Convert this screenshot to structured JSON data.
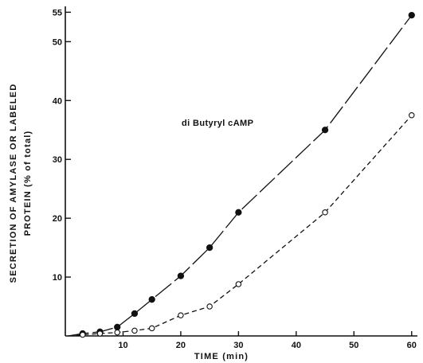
{
  "chart_data": {
    "type": "line",
    "annotation": "di Butyryl cAMP",
    "xlabel": "TIME (min)",
    "ylabel_line1": "SECRETION OF AMYLASE OR LABELED",
    "ylabel_line2": "PROTEIN (% of total)",
    "xlim": [
      0,
      61
    ],
    "ylim": [
      0,
      56
    ],
    "x_ticks": [
      10,
      20,
      30,
      40,
      50,
      60
    ],
    "y_ticks": [
      10,
      20,
      30,
      40,
      50,
      55
    ],
    "grid": false,
    "series": [
      {
        "marker": "filled-circle",
        "line_style": "dash-long",
        "color": "#111111",
        "x": [
          3,
          6,
          9,
          12,
          15,
          20,
          25,
          30,
          45,
          60
        ],
        "y": [
          0.4,
          0.7,
          1.5,
          3.8,
          6.2,
          10.2,
          15.0,
          21.0,
          35.0,
          54.5
        ]
      },
      {
        "marker": "open-circle",
        "line_style": "dash-short",
        "color": "#111111",
        "x": [
          3,
          6,
          9,
          12,
          15,
          20,
          25,
          30,
          45,
          60
        ],
        "y": [
          0.2,
          0.4,
          0.6,
          0.9,
          1.3,
          3.5,
          5.0,
          8.8,
          21.0,
          37.5
        ]
      }
    ]
  }
}
